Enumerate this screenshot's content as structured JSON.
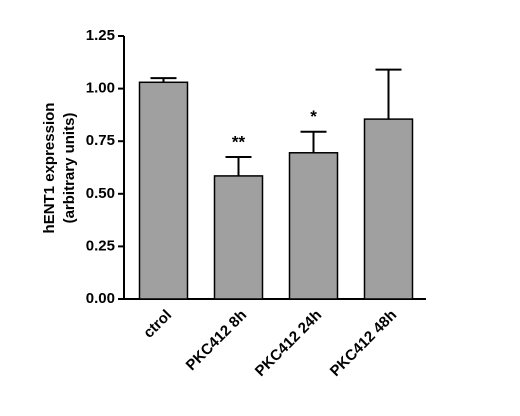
{
  "chart_data": {
    "type": "bar",
    "ylabel": [
      "hENT1 expression",
      "(arbitrary units)"
    ],
    "categories": [
      "ctrol",
      "PKC412 8h",
      "PKC412 24h",
      "PKC412 48h"
    ],
    "values": [
      1.03,
      0.585,
      0.695,
      0.855
    ],
    "errors": [
      0.02,
      0.09,
      0.1,
      0.235
    ],
    "annotations": [
      null,
      "**",
      "*",
      null
    ],
    "color": "#a0a0a0",
    "ylim": [
      0,
      1.25
    ],
    "yticks": [
      {
        "value": 0,
        "label": "0.00"
      },
      0.25,
      {
        "value": 0.5,
        "label": "0.50"
      },
      0.75,
      {
        "value": 1,
        "label": "1.00"
      },
      1.25
    ]
  }
}
